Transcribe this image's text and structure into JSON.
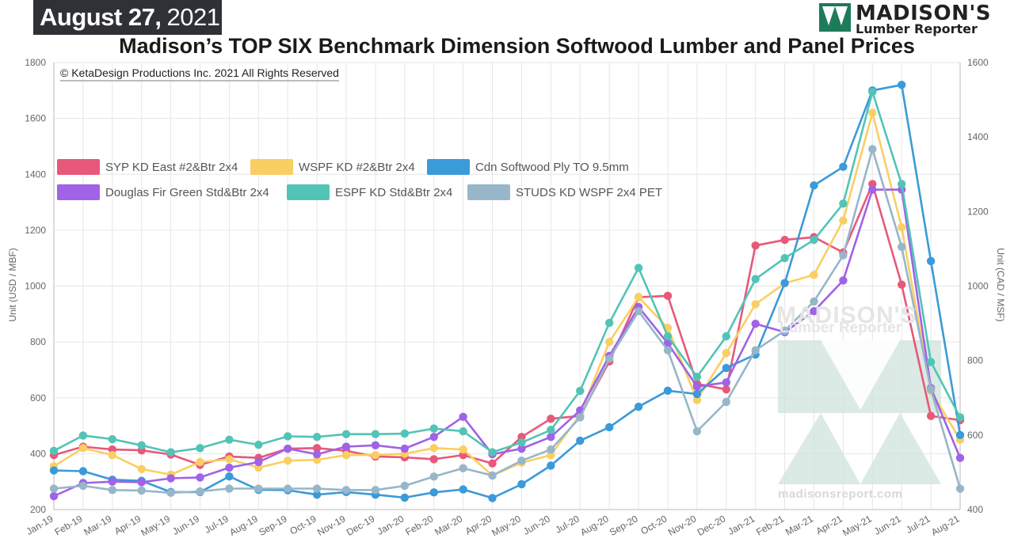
{
  "header": {
    "date_main": "August 27,",
    "date_year": "2021",
    "logo_top": "MADISON'S",
    "logo_bottom": "Lumber Reporter"
  },
  "copyright": "© KetaDesign Productions Inc. 2021 All Rights Reserved",
  "watermark": {
    "line1": "MADISON'S",
    "line2": "Lumber Reporter",
    "url": "madisonsreport.com"
  },
  "chart_data": {
    "type": "line",
    "title": "Madison’s TOP SIX Benchmark Dimension Softwood Lumber and Panel Prices",
    "ylabel_left": "Unit (USD / MBF)",
    "ylabel_right": "Unit (CAD / MSF)",
    "ylim_left": [
      200,
      1800
    ],
    "ylim_right": [
      400,
      1600
    ],
    "yticks_left": [
      "200",
      "400",
      "600",
      "800",
      "1000",
      "1200",
      "1400",
      "1600",
      "1800"
    ],
    "yticks_right": [
      "400",
      "600",
      "800",
      "1000",
      "1200",
      "1400",
      "1600"
    ],
    "grid": true,
    "legend_position": "upper-left",
    "x": [
      "Jan-19",
      "Feb-19",
      "Mar-19",
      "Apr-19",
      "May-19",
      "Jun-19",
      "Jul-19",
      "Aug-19",
      "Sep-19",
      "Oct-19",
      "Nov-19",
      "Dec-19",
      "Jan-20",
      "Feb-20",
      "Mar-20",
      "Apr-20",
      "May-20",
      "Jun-20",
      "Jul-20",
      "Aug-20",
      "Sep-20",
      "Oct-20",
      "Nov-20",
      "Dec-20",
      "Jan-21",
      "Feb-21",
      "Mar-21",
      "Apr-21",
      "May-21",
      "Jun-21",
      "Jul-21",
      "Aug-21"
    ],
    "series": [
      {
        "name": "SYP KD East #2&Btr 2x4",
        "color": "#e8587a",
        "axis": "left",
        "values": [
          395,
          425,
          415,
          412,
          397,
          360,
          390,
          385,
          418,
          420,
          410,
          390,
          387,
          380,
          395,
          365,
          460,
          525,
          535,
          730,
          960,
          965,
          650,
          630,
          1145,
          1165,
          1175,
          1120,
          1365,
          1005,
          535,
          520
        ]
      },
      {
        "name": "WSPF KD #2&Btr 2x4",
        "color": "#f9cf63",
        "axis": "left",
        "values": [
          355,
          420,
          395,
          345,
          325,
          370,
          380,
          350,
          375,
          378,
          395,
          395,
          400,
          420,
          415,
          322,
          368,
          395,
          540,
          800,
          960,
          850,
          592,
          760,
          935,
          1010,
          1040,
          1235,
          1620,
          1210,
          625,
          450
        ]
      },
      {
        "name": "Cdn Softwood Ply TO 9.5mm",
        "color": "#3b9ad9",
        "axis": "right",
        "values": [
          505,
          503,
          480,
          477,
          447,
          447,
          489,
          453,
          452,
          440,
          447,
          440,
          432,
          446,
          454,
          431,
          468,
          518,
          585,
          621,
          676,
          719,
          710,
          780,
          816,
          1008,
          1270,
          1320,
          1525,
          1540,
          1067,
          600
        ]
      },
      {
        "name": "Douglas Fir Green Std&Btr 2x4",
        "color": "#a062e6",
        "axis": "left",
        "values": [
          248,
          295,
          300,
          298,
          312,
          315,
          350,
          370,
          418,
          398,
          425,
          430,
          418,
          460,
          532,
          398,
          418,
          460,
          555,
          750,
          925,
          795,
          640,
          655,
          865,
          835,
          910,
          1020,
          1345,
          1345,
          635,
          385
        ]
      },
      {
        "name": "ESPF KD Std&Btr 2x4",
        "color": "#52c4b6",
        "axis": "left",
        "values": [
          410,
          465,
          452,
          430,
          405,
          420,
          450,
          432,
          462,
          460,
          470,
          470,
          472,
          490,
          480,
          405,
          440,
          485,
          625,
          868,
          1065,
          820,
          675,
          820,
          1025,
          1100,
          1165,
          1295,
          1695,
          1365,
          728,
          530
        ]
      },
      {
        "name": "STUDS KD WSPF 2x4 PET",
        "color": "#97b6c9",
        "axis": "left",
        "values": [
          275,
          285,
          270,
          268,
          260,
          265,
          275,
          275,
          275,
          275,
          270,
          270,
          285,
          318,
          348,
          322,
          375,
          415,
          530,
          740,
          910,
          770,
          480,
          585,
          770,
          840,
          945,
          1110,
          1490,
          1140,
          630,
          275
        ]
      }
    ]
  }
}
